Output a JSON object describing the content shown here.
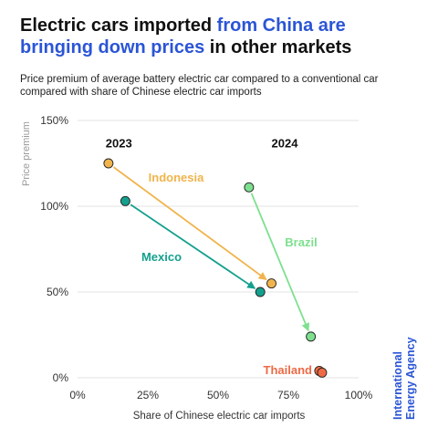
{
  "header": {
    "title_pre": "Electric cars imported ",
    "title_highlight": "from China are bringing down prices",
    "title_post": " in other markets",
    "subtitle": "Price premium of average battery electric car compared to a conventional car compared with share of Chinese electric car imports"
  },
  "brand": {
    "line1": "International",
    "line2": "Energy Agency",
    "color": "#2b55d6"
  },
  "chart_data": {
    "type": "scatter",
    "xlabel": "Share of Chinese electric car imports",
    "ylabel": "Price premium",
    "xlim": [
      0,
      100
    ],
    "ylim": [
      0,
      150
    ],
    "x_ticks": [
      {
        "value": 0,
        "label": "0%"
      },
      {
        "value": 25,
        "label": "25%"
      },
      {
        "value": 50,
        "label": "50%"
      },
      {
        "value": 75,
        "label": "75%"
      },
      {
        "value": 100,
        "label": "100%"
      }
    ],
    "y_ticks": [
      {
        "value": 0,
        "label": "0%"
      },
      {
        "value": 50,
        "label": "50%"
      },
      {
        "value": 100,
        "label": "100%"
      },
      {
        "value": 150,
        "label": "150%"
      }
    ],
    "grid": true,
    "annotations": [
      {
        "label": "2023",
        "x": 10,
        "y": 137
      },
      {
        "label": "2024",
        "x": 69,
        "y": 137
      }
    ],
    "series": [
      {
        "name": "Indonesia",
        "color": "#f0b44c",
        "point_2023": {
          "x": 11,
          "y": 125
        },
        "point_2024": {
          "x": 69,
          "y": 55
        }
      },
      {
        "name": "Mexico",
        "color": "#14a08e",
        "point_2023": {
          "x": 17,
          "y": 103
        },
        "point_2024": {
          "x": 65,
          "y": 50
        }
      },
      {
        "name": "Brazil",
        "color": "#7de08e",
        "point_2023": {
          "x": 61,
          "y": 111
        },
        "point_2024": {
          "x": 83,
          "y": 24
        }
      },
      {
        "name": "Thailand",
        "color": "#ee6a45",
        "point_2023": {
          "x": 86,
          "y": 4
        },
        "point_2024": {
          "x": 87,
          "y": 3
        }
      }
    ]
  }
}
